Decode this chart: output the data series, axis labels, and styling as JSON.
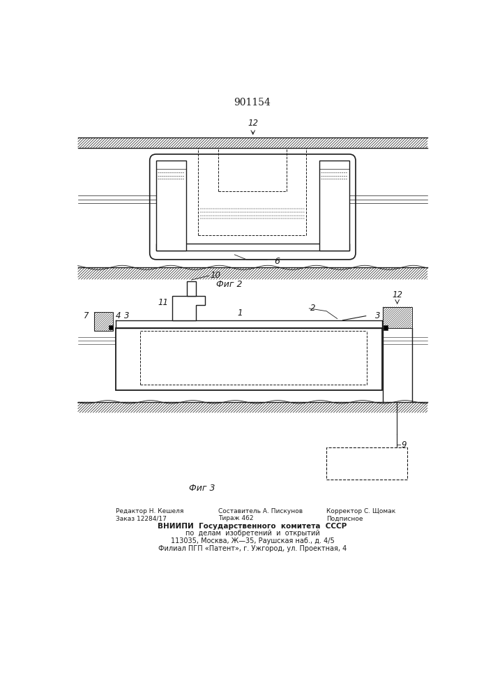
{
  "title_number": "901154",
  "bg_color": "#ffffff",
  "line_color": "#1a1a1a",
  "fig2_caption": "Фиг 2",
  "fig3_caption": "Фиг 3"
}
